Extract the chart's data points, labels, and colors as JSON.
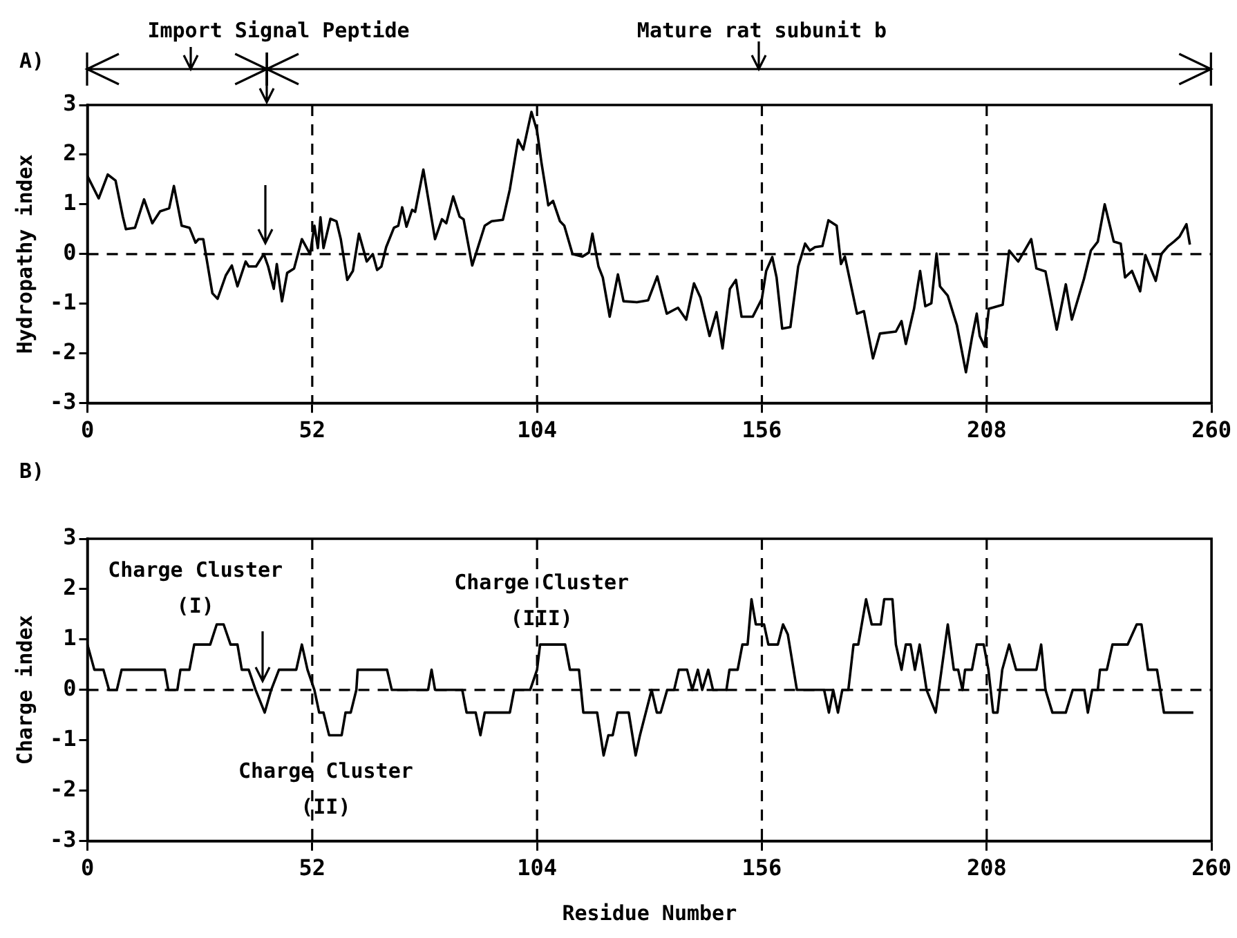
{
  "chart_data": [
    {
      "type": "line",
      "title": "A)",
      "ylabel": "Hydropathy index",
      "color": "#000000",
      "line_style": "solid",
      "grid": false,
      "legend": false,
      "annotations": [
        "Import Signal Peptide",
        "Mature rat subunit b"
      ],
      "xlim": [
        0,
        260
      ],
      "xticks": [
        0,
        52,
        104,
        156,
        208,
        260
      ],
      "ylim": [
        -3,
        3
      ],
      "yticks": [
        -3,
        -2,
        -1,
        0,
        1,
        2,
        3
      ],
      "ref_lines": [
        {
          "axis": "y",
          "value": 0,
          "line_style": "dashed"
        },
        {
          "axis": "x",
          "value": 52,
          "line_style": "dashed"
        },
        {
          "axis": "x",
          "value": 104,
          "line_style": "dashed"
        },
        {
          "axis": "x",
          "value": 156,
          "line_style": "dashed"
        },
        {
          "axis": "x",
          "value": 208,
          "line_style": "dashed"
        }
      ],
      "x": [
        0,
        2.6,
        4.7,
        6.5,
        8.2,
        8.9,
        11,
        13.1,
        15,
        16.8,
        18.9,
        20,
        21.8,
        23.6,
        25,
        25.7,
        26.8,
        28.9,
        30.1,
        32,
        33.4,
        34.7,
        36.6,
        37.3,
        39,
        40.8,
        41.8,
        43.1,
        43.8,
        45,
        46.2,
        47.8,
        49.6,
        51.5,
        52.5,
        53.3,
        53.9,
        54.6,
        56.2,
        57.6,
        58.6,
        60.1,
        61.4,
        62.8,
        64.6,
        66,
        67,
        68,
        69.1,
        70.9,
        71.9,
        72.8,
        73.8,
        75.1,
        75.8,
        77.7,
        80.4,
        82,
        83,
        84.6,
        86.1,
        87,
        89,
        91.9,
        93.5,
        96.1,
        97.7,
        99.6,
        100.8,
        102.7,
        104,
        105,
        106.6,
        107.7,
        109.3,
        110.3,
        112.2,
        114.5,
        116,
        116.8,
        118.2,
        119.2,
        120.8,
        122.7,
        124,
        127.1,
        129.7,
        131.8,
        134,
        136.6,
        138.5,
        140.3,
        141.8,
        143.9,
        145.5,
        146.9,
        148.6,
        150,
        151.3,
        153.9,
        156,
        157,
        158.4,
        159.4,
        160.7,
        162.6,
        164.4,
        166,
        167.1,
        168.3,
        170,
        171.4,
        173.3,
        174.3,
        175.2,
        178,
        179.6,
        181.7,
        183.3,
        187,
        188.3,
        189.3,
        191.2,
        192.6,
        193.8,
        195.2,
        196.4,
        197.2,
        199,
        201.1,
        203.2,
        204.6,
        205.7,
        206.4,
        207.5,
        208.5,
        211.7,
        213.2,
        215.3,
        218.3,
        219.5,
        221.6,
        224.2,
        226.3,
        227.7,
        230.5,
        232.1,
        233.7,
        235.3,
        237.4,
        239,
        240,
        241.6,
        243.5,
        244.7,
        247.1,
        248.4,
        250,
        251.3,
        252.6,
        254.2,
        255
      ],
      "values": [
        1.57,
        1.12,
        1.6,
        1.48,
        0.75,
        0.5,
        0.53,
        1.1,
        0.62,
        0.86,
        0.92,
        1.37,
        0.57,
        0.53,
        0.23,
        0.3,
        0.3,
        -0.79,
        -0.9,
        -0.43,
        -0.23,
        -0.65,
        -0.15,
        -0.25,
        -0.25,
        0,
        -0.25,
        -0.7,
        -0.2,
        -0.95,
        -0.38,
        -0.29,
        0.3,
        0,
        0.57,
        0.12,
        0.74,
        0.12,
        0.71,
        0.66,
        0.3,
        -0.52,
        -0.34,
        0.41,
        -0.15,
        0,
        -0.32,
        -0.25,
        0.14,
        0.53,
        0.57,
        0.94,
        0.55,
        0.89,
        0.85,
        1.7,
        0.3,
        0.7,
        0.62,
        1.16,
        0.75,
        0.7,
        -0.23,
        0.57,
        0.66,
        0.69,
        1.3,
        2.3,
        2.1,
        2.86,
        2.48,
        1.85,
        0.98,
        1.07,
        0.66,
        0.57,
        0,
        -0.05,
        0.03,
        0.41,
        -0.25,
        -0.47,
        -1.26,
        -0.41,
        -0.95,
        -0.97,
        -0.93,
        -0.45,
        -1.2,
        -1.08,
        -1.32,
        -0.59,
        -0.88,
        -1.65,
        -1.17,
        -1.9,
        -0.7,
        -0.52,
        -1.26,
        -1.26,
        -0.9,
        -0.34,
        -0.06,
        -0.47,
        -1.5,
        -1.47,
        -0.25,
        0.21,
        0.07,
        0.14,
        0.16,
        0.68,
        0.57,
        -0.2,
        -0.05,
        -1.2,
        -1.15,
        -2.1,
        -1.6,
        -1.56,
        -1.35,
        -1.81,
        -1.1,
        -0.34,
        -1.05,
        -0.99,
        0.01,
        -0.65,
        -0.84,
        -1.43,
        -2.38,
        -1.68,
        -1.2,
        -1.65,
        -1.86,
        -1.1,
        -1.02,
        0.07,
        -0.15,
        0.3,
        -0.29,
        -0.35,
        -1.52,
        -0.61,
        -1.32,
        -0.5,
        0.07,
        0.25,
        1.0,
        0.25,
        0.21,
        -0.47,
        -0.34,
        -0.75,
        -0.02,
        -0.54,
        0,
        0.16,
        0.25,
        0.35,
        0.6,
        0.19
      ]
    },
    {
      "type": "line",
      "title": "B)",
      "xlabel": "Residue Number",
      "ylabel": "Charge index",
      "color": "#000000",
      "line_style": "solid",
      "grid": false,
      "legend": false,
      "annotations": [
        "Charge Cluster (I)",
        "Charge Cluster (II)",
        "Charge Cluster (III)"
      ],
      "xlim": [
        0,
        260
      ],
      "xticks": [
        0,
        52,
        104,
        156,
        208,
        260
      ],
      "ylim": [
        -3,
        3
      ],
      "yticks": [
        -3,
        -2,
        -1,
        0,
        1,
        2,
        3
      ],
      "ref_lines": [
        {
          "axis": "y",
          "value": 0,
          "line_style": "dashed"
        },
        {
          "axis": "x",
          "value": 52,
          "line_style": "dashed"
        },
        {
          "axis": "x",
          "value": 104,
          "line_style": "dashed"
        },
        {
          "axis": "x",
          "value": 156,
          "line_style": "dashed"
        },
        {
          "axis": "x",
          "value": 208,
          "line_style": "dashed"
        }
      ],
      "x": [
        0,
        1.6,
        3.7,
        5,
        6.8,
        7.9,
        17.9,
        18.7,
        20.8,
        21.5,
        23.6,
        24.7,
        28.4,
        29.9,
        31.5,
        33.1,
        34.7,
        35.7,
        37.3,
        38.9,
        41,
        42.5,
        44.3,
        48.3,
        49.6,
        50.9,
        52.5,
        53.6,
        54.6,
        55.9,
        58.8,
        59.7,
        60.9,
        62.2,
        62.5,
        69.3,
        70.4,
        78.8,
        79.6,
        80.4,
        86.7,
        87.7,
        89.8,
        90.9,
        91.9,
        97.7,
        98.7,
        102.4,
        104,
        104.7,
        110.5,
        111.6,
        113.7,
        114.7,
        117.9,
        119.4,
        120.5,
        121.5,
        122.6,
        125.2,
        126.8,
        127.8,
        130.5,
        131.7,
        132.6,
        134.1,
        135.7,
        136.8,
        138.7,
        139.9,
        141.2,
        142.2,
        143.6,
        144.7,
        147.8,
        148.5,
        150.4,
        151.5,
        152.7,
        153.6,
        154.6,
        156.5,
        157.5,
        159.7,
        160.9,
        162,
        164.1,
        170.4,
        171.5,
        172.5,
        173.6,
        174.6,
        176,
        177.2,
        178.3,
        180.1,
        181.4,
        183.5,
        184.3,
        186.2,
        187,
        188.3,
        189.3,
        190.4,
        191.4,
        192.5,
        194.1,
        196.2,
        199,
        200.4,
        201.4,
        202.4,
        203,
        204.6,
        205.7,
        207.3,
        208.4,
        209.5,
        210.5,
        211.6,
        213.2,
        214.8,
        219.5,
        220.6,
        221.6,
        223.2,
        226.3,
        227.9,
        230.6,
        231.4,
        232.4,
        233.7,
        234.2,
        235.8,
        237.1,
        240.6,
        242.7,
        243.8,
        245.3,
        247.4,
        249,
        255.8
      ],
      "values": [
        0.9,
        0.4,
        0.4,
        0,
        0,
        0.4,
        0.4,
        0,
        0,
        0.4,
        0.4,
        0.9,
        0.9,
        1.3,
        1.3,
        0.9,
        0.9,
        0.4,
        0.4,
        0,
        -0.45,
        0,
        0.4,
        0.4,
        0.9,
        0.4,
        0,
        -0.45,
        -0.45,
        -0.9,
        -0.9,
        -0.45,
        -0.45,
        0,
        0.4,
        0.4,
        0,
        0,
        0.4,
        0,
        0,
        -0.45,
        -0.45,
        -0.9,
        -0.45,
        -0.45,
        0,
        0,
        0.4,
        0.9,
        0.9,
        0.4,
        0.4,
        -0.45,
        -0.45,
        -1.3,
        -0.9,
        -0.9,
        -0.45,
        -0.45,
        -1.3,
        -0.9,
        0,
        -0.45,
        -0.45,
        0,
        0,
        0.4,
        0.4,
        0,
        0.4,
        0,
        0.4,
        0,
        0,
        0.4,
        0.4,
        0.9,
        0.9,
        1.8,
        1.3,
        1.3,
        0.9,
        0.9,
        1.3,
        1.1,
        0,
        0,
        -0.45,
        0,
        -0.45,
        0,
        0,
        0.9,
        0.9,
        1.8,
        1.3,
        1.3,
        1.8,
        1.8,
        0.9,
        0.4,
        0.9,
        0.9,
        0.4,
        0.9,
        0,
        -0.45,
        1.3,
        0.4,
        0.4,
        0,
        0.4,
        0.4,
        0.9,
        0.9,
        0.4,
        -0.45,
        -0.45,
        0.4,
        0.9,
        0.4,
        0.4,
        0.9,
        0,
        -0.45,
        -0.45,
        0,
        0,
        -0.45,
        0,
        0,
        0.4,
        0.4,
        0.9,
        0.9,
        1.3,
        1.3,
        0.4,
        0.4,
        -0.45,
        -0.45
      ]
    }
  ]
}
